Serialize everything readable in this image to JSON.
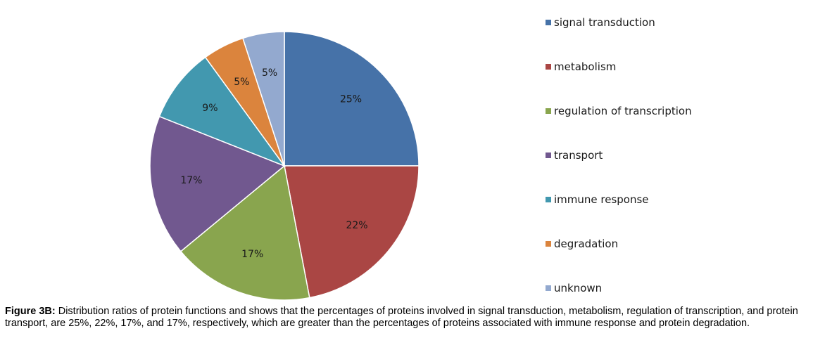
{
  "chart_data": {
    "type": "pie",
    "slices": [
      {
        "label": "signal transduction",
        "value": 25,
        "display": "25%",
        "color": "#4672A8"
      },
      {
        "label": "metabolism",
        "value": 22,
        "display": "22%",
        "color": "#AA4644"
      },
      {
        "label": "regulation of transcription",
        "value": 17,
        "display": "17%",
        "color": "#89A54E"
      },
      {
        "label": "transport",
        "value": 17,
        "display": "17%",
        "color": "#71588F"
      },
      {
        "label": "immune response",
        "value": 9,
        "display": "9%",
        "color": "#4298AF"
      },
      {
        "label": "degradation",
        "value": 5,
        "display": "5%",
        "color": "#DB843D"
      },
      {
        "label": "unknown",
        "value": 5,
        "display": "5%",
        "color": "#93A9CF"
      }
    ],
    "legend_position": "right"
  },
  "caption": {
    "prefix": "Figure 3B:",
    "text": " Distribution ratios of protein functions and shows that the percentages of proteins involved in signal transduction, metabolism, regulation of transcription, and protein transport, are 25%, 22%, 17%, and 17%, respectively, which are greater than the percentages of proteins associated with immune response and protein degradation."
  }
}
